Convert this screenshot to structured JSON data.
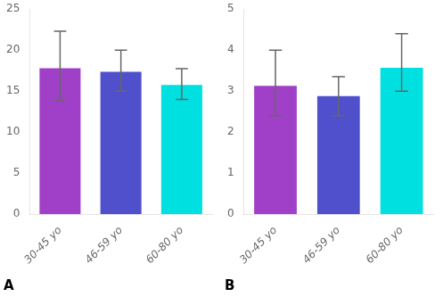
{
  "chart_data": [
    {
      "type": "bar",
      "title": "A",
      "categories": [
        "30-45 yo",
        "46-59 yo",
        "60-80 yo"
      ],
      "values": [
        17.8,
        17.35,
        15.75
      ],
      "errors_upper": [
        4.5,
        2.65,
        2.0
      ],
      "errors_lower": [
        4.0,
        2.35,
        1.75
      ],
      "colors": [
        "#A040C8",
        "#5050CC",
        "#00E0E0"
      ],
      "ylim": [
        0,
        25
      ],
      "yticks": [
        0,
        5,
        10,
        15,
        20,
        25
      ],
      "grid": false
    },
    {
      "type": "bar",
      "title": "B",
      "categories": [
        "30-45 yo",
        "46-59 yo",
        "60-80 yo"
      ],
      "values": [
        3.13,
        2.88,
        3.57
      ],
      "errors_upper": [
        0.87,
        0.47,
        0.83
      ],
      "errors_lower": [
        0.73,
        0.48,
        0.57
      ],
      "colors": [
        "#A040C8",
        "#5050CC",
        "#00E0E0"
      ],
      "ylim": [
        0,
        5
      ],
      "yticks": [
        0,
        1,
        2,
        3,
        4,
        5
      ],
      "grid": false
    }
  ]
}
